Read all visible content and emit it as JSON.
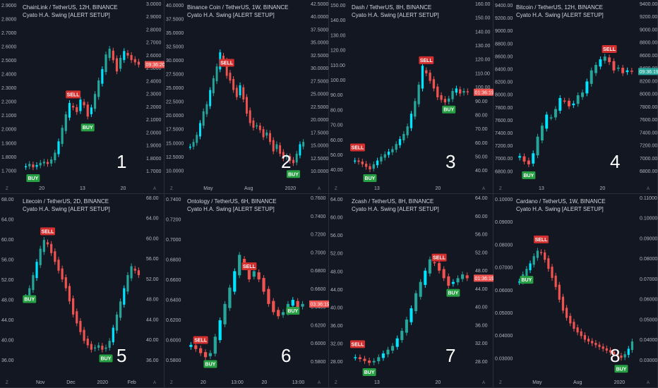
{
  "panels": [
    {
      "number": "1",
      "title": "ChainLink / TetherUS, 12H, BINANCE",
      "subtitle": "Cyato H.A. Swing [ALERT SETUP]",
      "price_label": "09:36:20",
      "price_label_color": "#ef5350",
      "yticks_left": [
        "2.9000",
        "2.8000",
        "2.7000",
        "2.6000",
        "2.5000",
        "2.4000",
        "2.3000",
        "2.2000",
        "2.1000",
        "2.0000",
        "1.9000",
        "1.8000",
        "1.7000"
      ],
      "yticks_right": [
        "3.0000",
        "2.9000",
        "2.8000",
        "2.7000",
        "2.6000",
        "2.5000",
        "2.4000",
        "2.3000",
        "2.2000",
        "2.1000",
        "2.0000",
        "1.9000",
        "1.8000",
        "1.7000"
      ],
      "xticks": [
        "20",
        "13",
        "20"
      ],
      "chart_data": {
        "type": "candlestick",
        "ylim": [
          1.62,
          3.02
        ],
        "close": [
          1.76,
          1.78,
          1.75,
          1.77,
          1.79,
          1.8,
          1.78,
          1.82,
          1.88,
          1.98,
          2.1,
          2.22,
          2.32,
          2.28,
          2.24,
          2.35,
          2.3,
          2.2,
          2.28,
          2.4,
          2.52,
          2.62,
          2.75,
          2.8,
          2.7,
          2.6,
          2.72,
          2.78,
          2.74,
          2.7,
          2.68,
          2.66
        ],
        "signals": [
          {
            "label": "BUY",
            "index": 2,
            "side": "buy"
          },
          {
            "label": "SELL",
            "index": 13,
            "side": "sell"
          },
          {
            "label": "BUY",
            "index": 17,
            "side": "buy"
          }
        ]
      }
    },
    {
      "number": "2",
      "title": "Binance Coin / TetherUS, 1W, BINANCE",
      "subtitle": "Cyato H.A. Swing [ALERT SETUP]",
      "price_label": "",
      "price_label_color": "#ef5350",
      "yticks_left": [
        "40.0000",
        "37.5000",
        "35.0000",
        "32.5000",
        "30.0000",
        "27.5000",
        "25.0000",
        "22.5000",
        "20.0000",
        "17.5000",
        "15.0000",
        "12.5000",
        "10.0000"
      ],
      "yticks_right": [
        "42.5000",
        "40.0000",
        "37.5000",
        "35.0000",
        "32.5000",
        "30.0000",
        "27.5000",
        "25.0000",
        "22.5000",
        "20.0000",
        "17.5000",
        "15.0000",
        "12.5000",
        "10.0000"
      ],
      "xticks": [
        "May",
        "Aug",
        "2020"
      ],
      "chart_data": {
        "type": "candlestick",
        "ylim": [
          9.5,
          43
        ],
        "close": [
          17.0,
          18.0,
          19.5,
          22.0,
          24.5,
          26.0,
          29.0,
          31.5,
          34.0,
          37.0,
          35.0,
          32.0,
          31.0,
          29.0,
          27.5,
          30.0,
          27.0,
          24.0,
          22.0,
          21.0,
          21.5,
          20.5,
          19.0,
          20.0,
          18.0,
          16.0,
          17.5,
          15.5,
          14.5,
          15.0,
          14.0,
          13.5,
          15.5,
          17.5,
          18.0
        ],
        "signals": [
          {
            "label": "SELL",
            "index": 11,
            "side": "sell"
          },
          {
            "label": "BUY",
            "index": 31,
            "side": "buy"
          }
        ]
      }
    },
    {
      "number": "3",
      "title": "Dash / TetherUS, 8H, BINANCE",
      "subtitle": "Cyato H.A. Swing [ALERT SETUP]",
      "price_label": "01:36:19",
      "price_label_color": "#ef5350",
      "yticks_left": [
        "150.00",
        "140.00",
        "130.00",
        "120.00",
        "110.00",
        "100.00",
        "90.00",
        "80.00",
        "70.00",
        "60.00",
        "50.00",
        "40.00"
      ],
      "yticks_right": [
        "160.00",
        "150.00",
        "140.00",
        "130.00",
        "120.00",
        "110.00",
        "100.00",
        "90.00",
        "80.00",
        "70.00",
        "60.00",
        "50.00",
        "40.00"
      ],
      "xticks": [
        "13",
        "20"
      ],
      "chart_data": {
        "type": "candlestick",
        "ylim": [
          38,
          163
        ],
        "close": [
          55,
          54,
          52,
          50,
          48,
          52,
          55,
          58,
          60,
          62,
          64,
          68,
          72,
          76,
          82,
          92,
          102,
          115,
          130,
          124,
          118,
          112,
          105,
          103,
          101,
          104,
          110,
          112,
          108,
          110,
          109
        ],
        "signals": [
          {
            "label": "SELL",
            "index": 0,
            "side": "sell"
          },
          {
            "label": "BUY",
            "index": 4,
            "side": "buy"
          },
          {
            "label": "SELL",
            "index": 19,
            "side": "sell"
          },
          {
            "label": "BUY",
            "index": 25,
            "side": "buy"
          }
        ]
      }
    },
    {
      "number": "4",
      "title": "Bitcoin / TetherUS, 12H, BINANCE",
      "subtitle": "Cyato H.A. Swing [ALERT SETUP]",
      "price_label": "09:36:19",
      "price_label_color": "#26a69a",
      "yticks_left": [
        "9400.00",
        "9200.00",
        "9000.00",
        "8800.00",
        "8600.00",
        "8400.00",
        "8200.00",
        "8000.00",
        "7800.00",
        "7600.00",
        "7400.00",
        "7200.00",
        "7000.00",
        "6800.00"
      ],
      "yticks_right": [
        "9400.00",
        "9200.00",
        "9000.00",
        "8800.00",
        "8600.00",
        "8400.00",
        "8200.00",
        "8000.00",
        "7800.00",
        "7600.00",
        "7400.00",
        "7200.00",
        "7000.00",
        "6800.00"
      ],
      "xticks": [
        "13",
        "20"
      ],
      "chart_data": {
        "type": "candlestick",
        "ylim": [
          6680,
          9540
        ],
        "close": [
          7150,
          7050,
          7000,
          7200,
          7500,
          7700,
          7900,
          7850,
          8000,
          8200,
          8150,
          8050,
          8100,
          8250,
          8300,
          8500,
          8700,
          8800,
          8900,
          8950,
          8850,
          8700,
          8750,
          8650,
          8700,
          8680
        ],
        "signals": [
          {
            "label": "BUY",
            "index": 2,
            "side": "buy"
          },
          {
            "label": "SELL",
            "index": 20,
            "side": "sell"
          }
        ]
      }
    },
    {
      "number": "5",
      "title": "Litecoin / TetherUS, 2D, BINANCE",
      "subtitle": "Cyato H.A. Swing [ALERT SETUP]",
      "price_label": "",
      "price_label_color": "#ef5350",
      "yticks_left": [
        "68.00",
        "64.00",
        "60.00",
        "56.00",
        "52.00",
        "48.00",
        "44.00",
        "40.00",
        "36.00"
      ],
      "yticks_right": [
        "68.00",
        "64.00",
        "60.00",
        "56.00",
        "52.00",
        "48.00",
        "44.00",
        "40.00",
        "36.00"
      ],
      "xticks": [
        "Nov",
        "Dec",
        "2020",
        "Feb"
      ],
      "chart_data": {
        "type": "candlestick",
        "ylim": [
          34,
          70
        ],
        "close": [
          52,
          54,
          57,
          60,
          63,
          65,
          64,
          62,
          60,
          58,
          56,
          54,
          51,
          48,
          46,
          44,
          42,
          41,
          40,
          40.5,
          41,
          40,
          40.5,
          42,
          45,
          48,
          51,
          54,
          57,
          59,
          58,
          57
        ],
        "signals": [
          {
            "label": "BUY",
            "index": 1,
            "side": "buy"
          },
          {
            "label": "SELL",
            "index": 6,
            "side": "sell"
          },
          {
            "label": "BUY",
            "index": 22,
            "side": "buy"
          }
        ]
      }
    },
    {
      "number": "6",
      "title": "Ontology / TetherUS, 6H, BINANCE",
      "subtitle": "Cyato H.A. Swing [ALERT SETUP]",
      "price_label": "03:36:19",
      "price_label_color": "#ef5350",
      "yticks_left": [
        "0.7400",
        "0.7200",
        "0.7000",
        "0.6800",
        "0.6600",
        "0.6400",
        "0.6200",
        "0.6000",
        "0.5800"
      ],
      "yticks_right": [
        "0.7600",
        "0.7400",
        "0.7200",
        "0.7000",
        "0.6800",
        "0.6600",
        "0.6400",
        "0.6200",
        "0.6000",
        "0.5800"
      ],
      "xticks": [
        "20",
        "13:00",
        "20",
        "13:00"
      ],
      "chart_data": {
        "type": "candlestick",
        "ylim": [
          0.572,
          0.765
        ],
        "close": [
          0.61,
          0.605,
          0.6,
          0.595,
          0.6,
          0.62,
          0.64,
          0.66,
          0.68,
          0.7,
          0.72,
          0.705,
          0.69,
          0.7,
          0.69,
          0.675,
          0.66,
          0.65,
          0.645,
          0.65,
          0.66,
          0.665,
          0.655,
          0.66
        ],
        "signals": [
          {
            "label": "SELL",
            "index": 2,
            "side": "sell"
          },
          {
            "label": "BUY",
            "index": 4,
            "side": "buy"
          },
          {
            "label": "SELL",
            "index": 12,
            "side": "sell"
          },
          {
            "label": "BUY",
            "index": 21,
            "side": "buy"
          }
        ]
      }
    },
    {
      "number": "7",
      "title": "Zcash / TetherUS, 8H, BINANCE",
      "subtitle": "Cyato H.A. Swing [ALERT SETUP]",
      "price_label": "01:36:19",
      "price_label_color": "#ef5350",
      "yticks_left": [
        "64.00",
        "60.00",
        "56.00",
        "52.00",
        "48.00",
        "44.00",
        "40.00",
        "36.00",
        "32.00",
        "28.00"
      ],
      "yticks_right": [
        "64.00",
        "60.00",
        "56.00",
        "52.00",
        "48.00",
        "44.00",
        "40.00",
        "36.00",
        "32.00",
        "28.00"
      ],
      "xticks": [
        "13",
        "20"
      ],
      "chart_data": {
        "type": "candlestick",
        "ylim": [
          26,
          68
        ],
        "close": [
          31,
          30.5,
          30,
          29.5,
          30,
          31,
          32,
          33,
          34,
          36,
          38,
          41,
          44,
          48,
          51,
          54,
          57,
          56,
          54,
          52,
          50,
          51,
          52,
          53,
          52
        ],
        "signals": [
          {
            "label": "SELL",
            "index": 0,
            "side": "sell"
          },
          {
            "label": "BUY",
            "index": 3,
            "side": "buy"
          },
          {
            "label": "SELL",
            "index": 18,
            "side": "sell"
          },
          {
            "label": "BUY",
            "index": 21,
            "side": "buy"
          }
        ]
      }
    },
    {
      "number": "8",
      "title": "Cardano / TetherUS, 1W, BINANCE",
      "subtitle": "Cyato H.A. Swing [ALERT SETUP]",
      "price_label": "",
      "price_label_color": "#ef5350",
      "yticks_left": [
        "0.10000",
        "0.09000",
        "0.08000",
        "0.07000",
        "0.06000",
        "0.05000",
        "0.04000",
        "0.03000"
      ],
      "yticks_right": [
        "0.11000",
        "0.10000",
        "0.09000",
        "0.08000",
        "0.07000",
        "0.06000",
        "0.05000",
        "0.04000",
        "0.03000"
      ],
      "xticks": [
        "May",
        "Aug",
        "2020"
      ],
      "chart_data": {
        "type": "candlestick",
        "ylim": [
          0.026,
          0.113
        ],
        "close": [
          0.078,
          0.082,
          0.085,
          0.088,
          0.092,
          0.095,
          0.094,
          0.09,
          0.085,
          0.08,
          0.075,
          0.068,
          0.062,
          0.058,
          0.055,
          0.052,
          0.05,
          0.048,
          0.046,
          0.045,
          0.044,
          0.043,
          0.042,
          0.041,
          0.04,
          0.039,
          0.038,
          0.037,
          0.036,
          0.038,
          0.041,
          0.045
        ],
        "signals": [
          {
            "label": "BUY",
            "index": 2,
            "side": "buy"
          },
          {
            "label": "SELL",
            "index": 6,
            "side": "sell"
          },
          {
            "label": "BUY",
            "index": 28,
            "side": "buy"
          }
        ]
      }
    }
  ],
  "colors": {
    "background": "#131722",
    "up": "#26a69a",
    "up_bright": "#00e5ff",
    "down": "#ef5350",
    "buy_tag": "#26a042",
    "sell_tag": "#d32f2f",
    "axis_text": "#b2b5be",
    "divider": "#2a2e39"
  },
  "icons": {
    "axis_corner_left": "Z",
    "axis_corner_right": "A"
  }
}
